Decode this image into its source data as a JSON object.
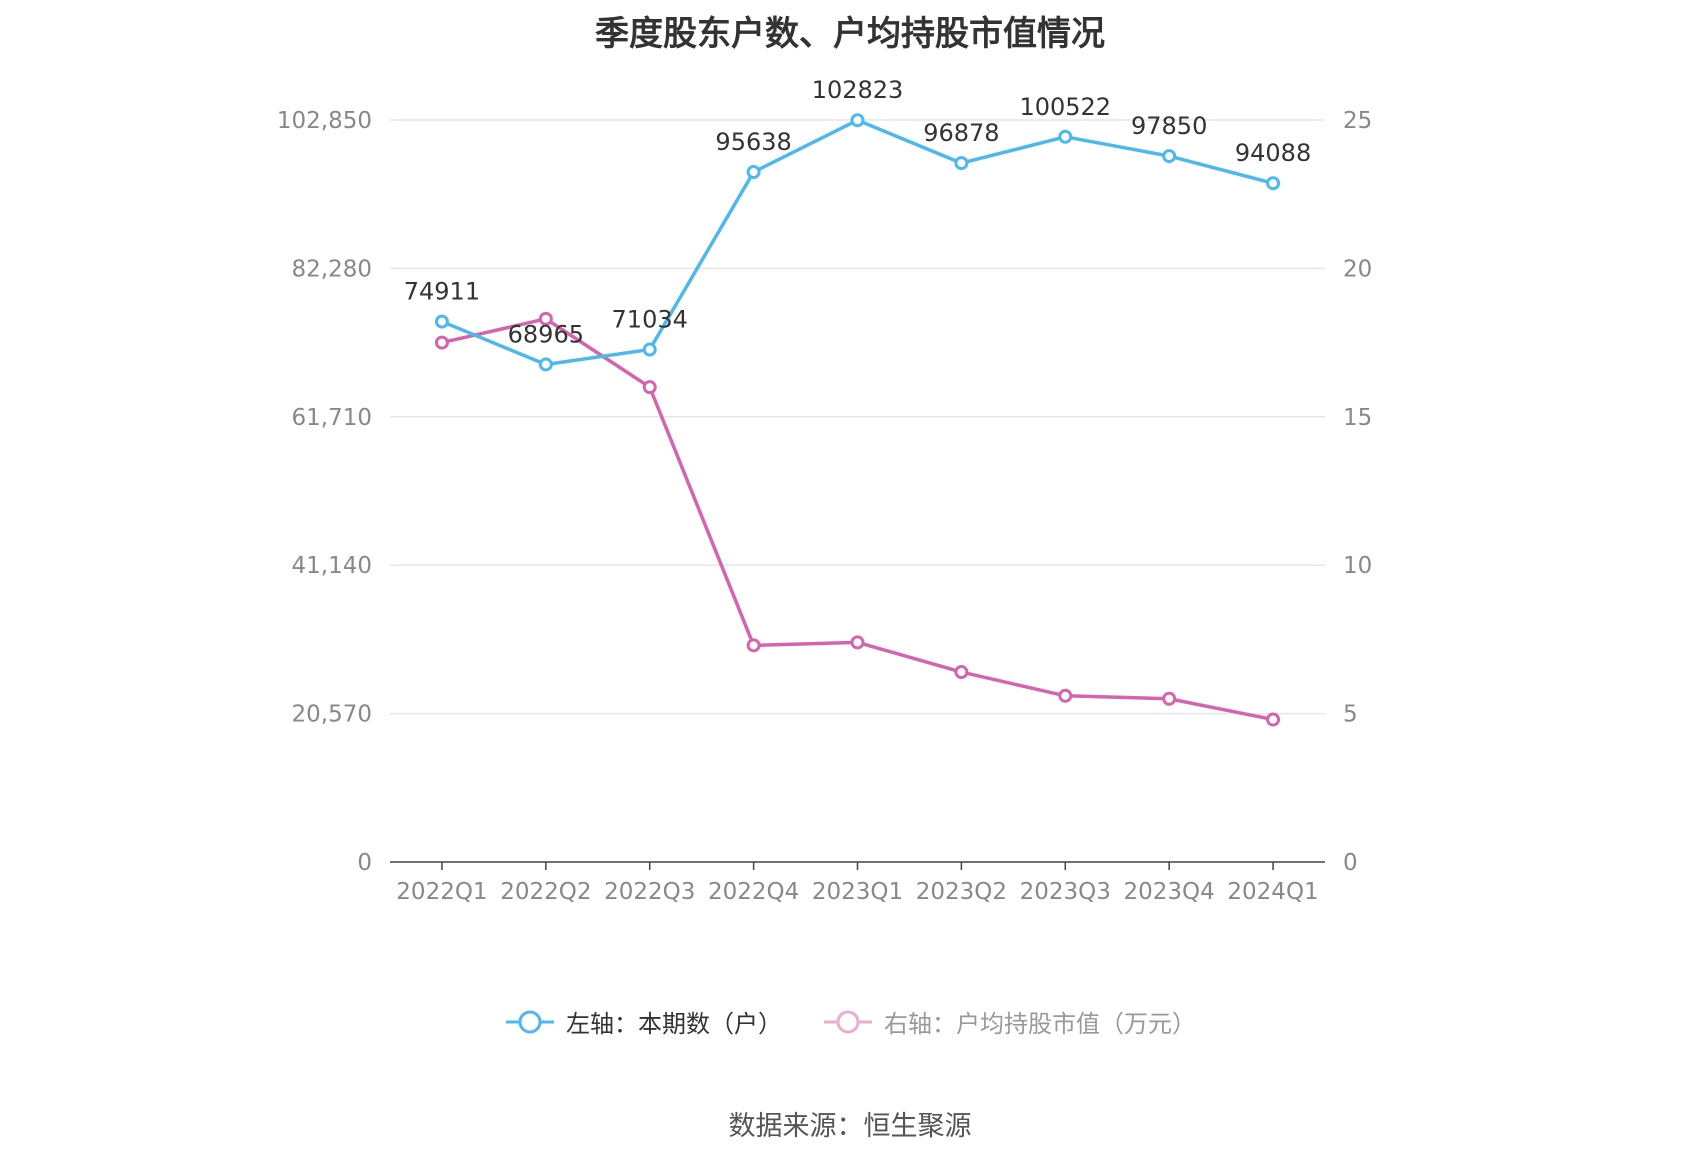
{
  "chart_data": {
    "type": "line",
    "title": "季度股东户数、户均持股市值情况",
    "categories": [
      "2022Q1",
      "2022Q2",
      "2022Q3",
      "2022Q4",
      "2023Q1",
      "2023Q2",
      "2023Q3",
      "2023Q4",
      "2024Q1"
    ],
    "series": [
      {
        "name": "左轴：本期数（户）",
        "axis": "left",
        "color": "#4db8ee",
        "values": [
          74911,
          68965,
          71034,
          95638,
          102823,
          96878,
          100522,
          97850,
          94088
        ],
        "labels": [
          "74911",
          "68965",
          "71034",
          "95638",
          "102823",
          "96878",
          "100522",
          "97850",
          "94088"
        ]
      },
      {
        "name": "右轴：户均持股市值（万元）",
        "axis": "right",
        "color": "#d464ad",
        "values": [
          17.5,
          18.3,
          16.0,
          7.3,
          7.4,
          6.4,
          5.6,
          5.5,
          4.8
        ]
      }
    ],
    "left_axis": {
      "ticks": [
        "0",
        "20,570",
        "41,140",
        "61,710",
        "82,280",
        "102,850"
      ],
      "min": 0,
      "max": 102850
    },
    "right_axis": {
      "ticks": [
        "0",
        "5",
        "10",
        "15",
        "20",
        "25"
      ],
      "min": 0,
      "max": 25
    },
    "grid": true,
    "legend_position": "bottom"
  },
  "legend": {
    "left_label": "左轴：本期数（户）",
    "right_label": "右轴：户均持股市值（万元）"
  },
  "source": "数据来源：恒生聚源"
}
